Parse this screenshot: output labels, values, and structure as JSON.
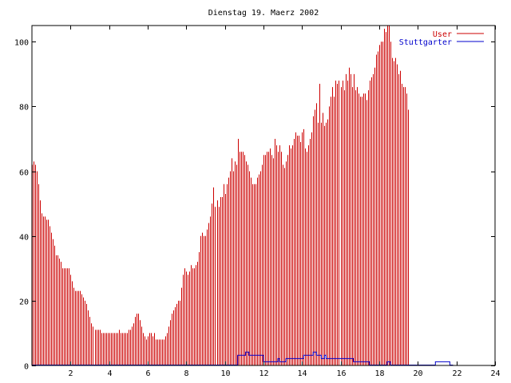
{
  "chart_data": {
    "type": "bar",
    "title": "Dienstag 19. Maerz 2002",
    "xlabel": "",
    "ylabel": "",
    "xlim": [
      0,
      24
    ],
    "ylim": [
      0,
      105
    ],
    "x_ticks": [
      2,
      4,
      6,
      8,
      10,
      12,
      14,
      16,
      18,
      20,
      22,
      24
    ],
    "y_ticks": [
      0,
      20,
      40,
      60,
      80,
      100
    ],
    "grid": false,
    "legend_position": "top-right",
    "bin_hours": 0.0833,
    "series": [
      {
        "name": "User",
        "color": "#cc0000",
        "style": "impulses",
        "values": [
          62,
          63,
          62,
          60,
          56,
          51,
          47,
          46,
          46,
          45,
          45,
          43,
          41,
          39,
          37,
          34,
          34,
          33,
          32,
          30,
          30,
          30,
          30,
          30,
          28,
          26,
          24,
          23,
          23,
          23,
          23,
          22,
          21,
          20,
          19,
          17,
          15,
          13,
          12,
          11,
          11,
          11,
          11,
          10,
          10,
          10,
          10,
          10,
          10,
          10,
          10,
          10,
          10,
          10,
          11,
          10,
          10,
          10,
          10,
          10,
          11,
          11,
          12,
          13,
          15,
          16,
          16,
          14,
          12,
          10,
          9,
          8,
          9,
          10,
          10,
          9,
          10,
          8,
          8,
          8,
          8,
          8,
          8,
          9,
          10,
          12,
          14,
          16,
          17,
          18,
          19,
          20,
          20,
          24,
          28,
          30,
          29,
          28,
          29,
          31,
          30,
          30,
          31,
          32,
          35,
          40,
          41,
          40,
          40,
          42,
          44,
          46,
          50,
          55,
          49,
          51,
          49,
          52,
          52,
          56,
          53,
          56,
          58,
          60,
          64,
          60,
          63,
          62,
          70,
          66,
          66,
          66,
          65,
          63,
          62,
          60,
          58,
          56,
          56,
          56,
          58,
          59,
          60,
          62,
          65,
          65,
          66,
          66,
          67,
          65,
          64,
          70,
          68,
          66,
          68,
          66,
          62,
          61,
          63,
          65,
          68,
          67,
          68,
          70,
          72,
          71,
          71,
          69,
          72,
          73,
          67,
          66,
          68,
          70,
          72,
          77,
          79,
          81,
          75,
          87,
          75,
          78,
          74,
          75,
          76,
          80,
          83,
          86,
          83,
          88,
          87,
          88,
          86,
          88,
          85,
          90,
          88,
          92,
          90,
          86,
          90,
          85,
          86,
          84,
          83,
          83,
          84,
          84,
          82,
          85,
          88,
          89,
          90,
          92,
          96,
          97,
          99,
          100,
          100,
          104,
          103,
          106,
          105,
          100,
          95,
          94,
          95,
          93,
          90,
          91,
          87,
          86,
          86,
          84,
          79
        ]
      },
      {
        "name": "Stuttgarter",
        "color": "#0000cc",
        "style": "steps",
        "values": [
          0,
          0,
          0,
          0,
          0,
          0,
          0,
          0,
          0,
          0,
          0,
          0,
          0,
          0,
          0,
          0,
          0,
          0,
          0,
          0,
          0,
          0,
          0,
          0,
          0,
          0,
          0,
          0,
          0,
          0,
          0,
          0,
          0,
          0,
          0,
          0,
          0,
          0,
          0,
          0,
          0,
          0,
          0,
          0,
          0,
          0,
          0,
          0,
          0,
          0,
          0,
          0,
          0,
          0,
          0,
          0,
          0,
          0,
          0,
          0,
          0,
          0,
          0,
          0,
          0,
          0,
          0,
          0,
          0,
          0,
          0,
          0,
          0,
          0,
          0,
          0,
          0,
          0,
          0,
          0,
          0,
          0,
          0,
          0,
          0,
          0,
          0,
          0,
          0,
          0,
          0,
          0,
          0,
          0,
          0,
          0,
          0,
          0,
          0,
          0,
          0,
          0,
          0,
          0,
          0,
          0,
          0,
          0,
          0,
          0,
          0,
          0,
          0,
          0,
          0,
          0,
          0,
          0,
          0,
          0,
          0,
          0,
          0,
          0,
          0,
          0,
          0,
          0,
          3,
          3,
          3,
          3,
          3,
          4,
          4,
          3,
          3,
          3,
          3,
          3,
          3,
          3,
          3,
          3,
          1,
          1,
          1,
          1,
          1,
          1,
          1,
          1,
          1,
          2,
          1,
          1,
          1,
          1,
          2,
          2,
          2,
          2,
          2,
          2,
          2,
          2,
          2,
          2,
          2,
          3,
          3,
          3,
          3,
          3,
          3,
          4,
          4,
          3,
          3,
          3,
          2,
          2,
          3,
          2,
          2,
          2,
          2,
          2,
          2,
          2,
          2,
          2,
          2,
          2,
          2,
          2,
          2,
          2,
          2,
          2,
          1,
          1,
          1,
          1,
          1,
          1,
          1,
          1,
          1,
          1,
          0,
          0,
          0,
          0,
          0,
          0,
          0,
          0,
          0,
          0,
          0,
          1,
          1,
          0,
          0,
          0,
          0,
          0,
          0,
          0,
          0,
          0,
          0,
          0,
          0,
          0,
          0,
          0,
          0,
          0,
          0,
          0,
          0,
          0,
          0,
          0,
          0,
          0,
          0,
          0,
          0,
          1,
          1,
          1,
          1,
          1,
          1,
          1,
          1,
          1,
          0,
          0
        ]
      }
    ]
  }
}
